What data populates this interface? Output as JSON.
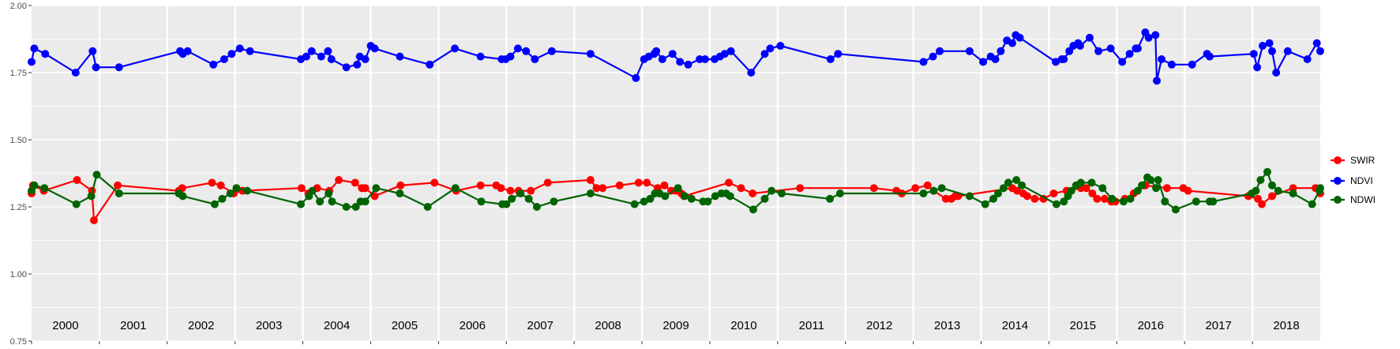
{
  "chart_data": {
    "type": "line",
    "xlim": [
      2000.0,
      2019.0
    ],
    "ylim": [
      0.75,
      2.0
    ],
    "yticks": [
      "0.75",
      "1.00",
      "1.25",
      "1.50",
      "1.75",
      "2.00"
    ],
    "year_labels": [
      "2000",
      "2001",
      "2002",
      "2003",
      "2004",
      "2005",
      "2006",
      "2007",
      "2008",
      "2009",
      "2010",
      "2011",
      "2012",
      "2013",
      "2014",
      "2015",
      "2016",
      "2017",
      "2018"
    ],
    "grid": true,
    "legend_position": "right",
    "series": [
      {
        "name": "SWIR",
        "color": "#ff0000",
        "points": [
          [
            2000.0,
            1.3
          ],
          [
            2000.02,
            1.33
          ],
          [
            2000.18,
            1.31
          ],
          [
            2000.67,
            1.35
          ],
          [
            2000.89,
            1.31
          ],
          [
            2000.92,
            1.2
          ],
          [
            2001.27,
            1.33
          ],
          [
            2002.17,
            1.31
          ],
          [
            2002.22,
            1.32
          ],
          [
            2002.66,
            1.34
          ],
          [
            2002.79,
            1.33
          ],
          [
            2002.98,
            1.3
          ],
          [
            2003.11,
            1.31
          ],
          [
            2003.98,
            1.32
          ],
          [
            2004.08,
            1.3
          ],
          [
            2004.21,
            1.32
          ],
          [
            2004.39,
            1.31
          ],
          [
            2004.53,
            1.35
          ],
          [
            2004.77,
            1.34
          ],
          [
            2004.87,
            1.32
          ],
          [
            2004.92,
            1.32
          ],
          [
            2005.06,
            1.29
          ],
          [
            2005.44,
            1.33
          ],
          [
            2005.94,
            1.34
          ],
          [
            2006.26,
            1.31
          ],
          [
            2006.62,
            1.33
          ],
          [
            2006.85,
            1.33
          ],
          [
            2006.92,
            1.32
          ],
          [
            2007.06,
            1.31
          ],
          [
            2007.18,
            1.31
          ],
          [
            2007.36,
            1.31
          ],
          [
            2007.61,
            1.34
          ],
          [
            2008.24,
            1.35
          ],
          [
            2008.33,
            1.32
          ],
          [
            2008.42,
            1.32
          ],
          [
            2008.67,
            1.33
          ],
          [
            2008.95,
            1.34
          ],
          [
            2009.07,
            1.34
          ],
          [
            2009.23,
            1.32
          ],
          [
            2009.33,
            1.33
          ],
          [
            2009.43,
            1.31
          ],
          [
            2009.5,
            1.31
          ],
          [
            2009.58,
            1.3
          ],
          [
            2009.62,
            1.29
          ],
          [
            2010.28,
            1.34
          ],
          [
            2010.46,
            1.32
          ],
          [
            2010.63,
            1.3
          ],
          [
            2011.33,
            1.32
          ],
          [
            2012.42,
            1.32
          ],
          [
            2012.75,
            1.31
          ],
          [
            2012.83,
            1.3
          ],
          [
            2013.03,
            1.32
          ],
          [
            2013.21,
            1.33
          ],
          [
            2013.3,
            1.31
          ],
          [
            2013.48,
            1.28
          ],
          [
            2013.56,
            1.28
          ],
          [
            2013.62,
            1.29
          ],
          [
            2013.66,
            1.29
          ],
          [
            2014.46,
            1.32
          ],
          [
            2014.53,
            1.31
          ],
          [
            2014.62,
            1.3
          ],
          [
            2014.68,
            1.29
          ],
          [
            2014.79,
            1.28
          ],
          [
            2014.92,
            1.28
          ],
          [
            2015.07,
            1.3
          ],
          [
            2015.26,
            1.31
          ],
          [
            2015.47,
            1.32
          ],
          [
            2015.55,
            1.32
          ],
          [
            2015.64,
            1.3
          ],
          [
            2015.71,
            1.28
          ],
          [
            2015.82,
            1.28
          ],
          [
            2015.92,
            1.27
          ],
          [
            2015.98,
            1.27
          ],
          [
            2016.12,
            1.28
          ],
          [
            2016.25,
            1.3
          ],
          [
            2016.42,
            1.33
          ],
          [
            2016.74,
            1.32
          ],
          [
            2016.98,
            1.32
          ],
          [
            2017.05,
            1.31
          ],
          [
            2017.94,
            1.29
          ],
          [
            2018.08,
            1.28
          ],
          [
            2018.14,
            1.26
          ],
          [
            2018.29,
            1.29
          ],
          [
            2018.6,
            1.32
          ],
          [
            2018.93,
            1.32
          ],
          [
            2019.0,
            1.3
          ]
        ]
      },
      {
        "name": "NDVI",
        "color": "#0000ff",
        "points": [
          [
            2000.0,
            1.79
          ],
          [
            2000.04,
            1.84
          ],
          [
            2000.2,
            1.82
          ],
          [
            2000.65,
            1.75
          ],
          [
            2000.9,
            1.83
          ],
          [
            2000.95,
            1.77
          ],
          [
            2001.29,
            1.77
          ],
          [
            2002.19,
            1.83
          ],
          [
            2002.23,
            1.82
          ],
          [
            2002.3,
            1.83
          ],
          [
            2002.68,
            1.78
          ],
          [
            2002.84,
            1.8
          ],
          [
            2002.95,
            1.82
          ],
          [
            2003.07,
            1.84
          ],
          [
            2003.22,
            1.83
          ],
          [
            2003.97,
            1.8
          ],
          [
            2004.05,
            1.81
          ],
          [
            2004.13,
            1.83
          ],
          [
            2004.27,
            1.81
          ],
          [
            2004.37,
            1.83
          ],
          [
            2004.42,
            1.8
          ],
          [
            2004.64,
            1.77
          ],
          [
            2004.8,
            1.78
          ],
          [
            2004.84,
            1.81
          ],
          [
            2004.92,
            1.8
          ],
          [
            2005.0,
            1.85
          ],
          [
            2005.06,
            1.84
          ],
          [
            2005.43,
            1.81
          ],
          [
            2005.87,
            1.78
          ],
          [
            2006.24,
            1.84
          ],
          [
            2006.62,
            1.81
          ],
          [
            2006.93,
            1.8
          ],
          [
            2006.99,
            1.8
          ],
          [
            2007.06,
            1.81
          ],
          [
            2007.17,
            1.84
          ],
          [
            2007.29,
            1.83
          ],
          [
            2007.42,
            1.8
          ],
          [
            2007.67,
            1.83
          ],
          [
            2008.24,
            1.82
          ],
          [
            2008.91,
            1.73
          ],
          [
            2009.03,
            1.8
          ],
          [
            2009.1,
            1.81
          ],
          [
            2009.18,
            1.82
          ],
          [
            2009.21,
            1.83
          ],
          [
            2009.3,
            1.8
          ],
          [
            2009.45,
            1.82
          ],
          [
            2009.56,
            1.79
          ],
          [
            2009.68,
            1.78
          ],
          [
            2009.85,
            1.8
          ],
          [
            2009.93,
            1.8
          ],
          [
            2010.07,
            1.8
          ],
          [
            2010.15,
            1.81
          ],
          [
            2010.22,
            1.82
          ],
          [
            2010.31,
            1.83
          ],
          [
            2010.61,
            1.75
          ],
          [
            2010.81,
            1.82
          ],
          [
            2010.89,
            1.84
          ],
          [
            2011.04,
            1.85
          ],
          [
            2011.78,
            1.8
          ],
          [
            2011.89,
            1.82
          ],
          [
            2013.15,
            1.79
          ],
          [
            2013.29,
            1.81
          ],
          [
            2013.39,
            1.83
          ],
          [
            2013.83,
            1.83
          ],
          [
            2014.03,
            1.79
          ],
          [
            2014.14,
            1.81
          ],
          [
            2014.21,
            1.8
          ],
          [
            2014.29,
            1.83
          ],
          [
            2014.38,
            1.87
          ],
          [
            2014.46,
            1.86
          ],
          [
            2014.51,
            1.89
          ],
          [
            2014.57,
            1.88
          ],
          [
            2015.1,
            1.79
          ],
          [
            2015.19,
            1.8
          ],
          [
            2015.22,
            1.8
          ],
          [
            2015.3,
            1.83
          ],
          [
            2015.36,
            1.85
          ],
          [
            2015.43,
            1.86
          ],
          [
            2015.46,
            1.85
          ],
          [
            2015.6,
            1.88
          ],
          [
            2015.73,
            1.83
          ],
          [
            2015.91,
            1.84
          ],
          [
            2016.08,
            1.79
          ],
          [
            2016.19,
            1.82
          ],
          [
            2016.28,
            1.84
          ],
          [
            2016.31,
            1.84
          ],
          [
            2016.42,
            1.9
          ],
          [
            2016.47,
            1.88
          ],
          [
            2016.57,
            1.89
          ],
          [
            2016.59,
            1.72
          ],
          [
            2016.66,
            1.8
          ],
          [
            2016.81,
            1.78
          ],
          [
            2017.11,
            1.78
          ],
          [
            2017.33,
            1.82
          ],
          [
            2017.37,
            1.81
          ],
          [
            2018.02,
            1.82
          ],
          [
            2018.07,
            1.77
          ],
          [
            2018.15,
            1.85
          ],
          [
            2018.25,
            1.86
          ],
          [
            2018.29,
            1.83
          ],
          [
            2018.35,
            1.75
          ],
          [
            2018.52,
            1.83
          ],
          [
            2018.81,
            1.8
          ],
          [
            2018.95,
            1.86
          ],
          [
            2019.0,
            1.83
          ]
        ]
      },
      {
        "name": "NDWI",
        "color": "#006400",
        "points": [
          [
            2000.0,
            1.31
          ],
          [
            2000.04,
            1.33
          ],
          [
            2000.19,
            1.32
          ],
          [
            2000.66,
            1.26
          ],
          [
            2000.88,
            1.29
          ],
          [
            2000.96,
            1.37
          ],
          [
            2001.29,
            1.3
          ],
          [
            2002.17,
            1.3
          ],
          [
            2002.23,
            1.29
          ],
          [
            2002.7,
            1.26
          ],
          [
            2002.81,
            1.28
          ],
          [
            2002.93,
            1.3
          ],
          [
            2003.02,
            1.32
          ],
          [
            2003.18,
            1.31
          ],
          [
            2003.97,
            1.26
          ],
          [
            2004.09,
            1.29
          ],
          [
            2004.14,
            1.31
          ],
          [
            2004.25,
            1.27
          ],
          [
            2004.38,
            1.3
          ],
          [
            2004.43,
            1.27
          ],
          [
            2004.64,
            1.25
          ],
          [
            2004.78,
            1.25
          ],
          [
            2004.85,
            1.27
          ],
          [
            2004.92,
            1.27
          ],
          [
            2005.08,
            1.32
          ],
          [
            2005.43,
            1.3
          ],
          [
            2005.84,
            1.25
          ],
          [
            2006.25,
            1.32
          ],
          [
            2006.63,
            1.27
          ],
          [
            2006.94,
            1.26
          ],
          [
            2007.0,
            1.26
          ],
          [
            2007.08,
            1.28
          ],
          [
            2007.21,
            1.3
          ],
          [
            2007.33,
            1.28
          ],
          [
            2007.45,
            1.25
          ],
          [
            2007.7,
            1.27
          ],
          [
            2008.24,
            1.3
          ],
          [
            2008.89,
            1.26
          ],
          [
            2009.03,
            1.27
          ],
          [
            2009.12,
            1.28
          ],
          [
            2009.19,
            1.3
          ],
          [
            2009.26,
            1.3
          ],
          [
            2009.34,
            1.29
          ],
          [
            2009.53,
            1.32
          ],
          [
            2009.63,
            1.29
          ],
          [
            2009.73,
            1.28
          ],
          [
            2009.9,
            1.27
          ],
          [
            2009.97,
            1.27
          ],
          [
            2010.08,
            1.29
          ],
          [
            2010.17,
            1.3
          ],
          [
            2010.24,
            1.3
          ],
          [
            2010.3,
            1.29
          ],
          [
            2010.64,
            1.24
          ],
          [
            2010.81,
            1.28
          ],
          [
            2010.91,
            1.31
          ],
          [
            2011.06,
            1.3
          ],
          [
            2011.77,
            1.28
          ],
          [
            2011.92,
            1.3
          ],
          [
            2013.15,
            1.3
          ],
          [
            2013.3,
            1.31
          ],
          [
            2013.42,
            1.32
          ],
          [
            2013.83,
            1.29
          ],
          [
            2014.06,
            1.26
          ],
          [
            2014.18,
            1.28
          ],
          [
            2014.25,
            1.3
          ],
          [
            2014.33,
            1.32
          ],
          [
            2014.4,
            1.34
          ],
          [
            2014.52,
            1.35
          ],
          [
            2014.6,
            1.33
          ],
          [
            2015.11,
            1.26
          ],
          [
            2015.22,
            1.27
          ],
          [
            2015.28,
            1.29
          ],
          [
            2015.33,
            1.31
          ],
          [
            2015.4,
            1.33
          ],
          [
            2015.47,
            1.34
          ],
          [
            2015.63,
            1.34
          ],
          [
            2015.79,
            1.32
          ],
          [
            2015.93,
            1.28
          ],
          [
            2016.1,
            1.27
          ],
          [
            2016.2,
            1.28
          ],
          [
            2016.31,
            1.31
          ],
          [
            2016.37,
            1.33
          ],
          [
            2016.45,
            1.36
          ],
          [
            2016.5,
            1.35
          ],
          [
            2016.58,
            1.32
          ],
          [
            2016.61,
            1.35
          ],
          [
            2016.71,
            1.27
          ],
          [
            2016.87,
            1.24
          ],
          [
            2017.17,
            1.27
          ],
          [
            2017.37,
            1.27
          ],
          [
            2017.42,
            1.27
          ],
          [
            2017.99,
            1.3
          ],
          [
            2018.05,
            1.31
          ],
          [
            2018.12,
            1.35
          ],
          [
            2018.22,
            1.38
          ],
          [
            2018.29,
            1.33
          ],
          [
            2018.38,
            1.31
          ],
          [
            2018.6,
            1.3
          ],
          [
            2018.88,
            1.26
          ],
          [
            2018.99,
            1.31
          ],
          [
            2019.0,
            1.32
          ]
        ]
      }
    ]
  }
}
